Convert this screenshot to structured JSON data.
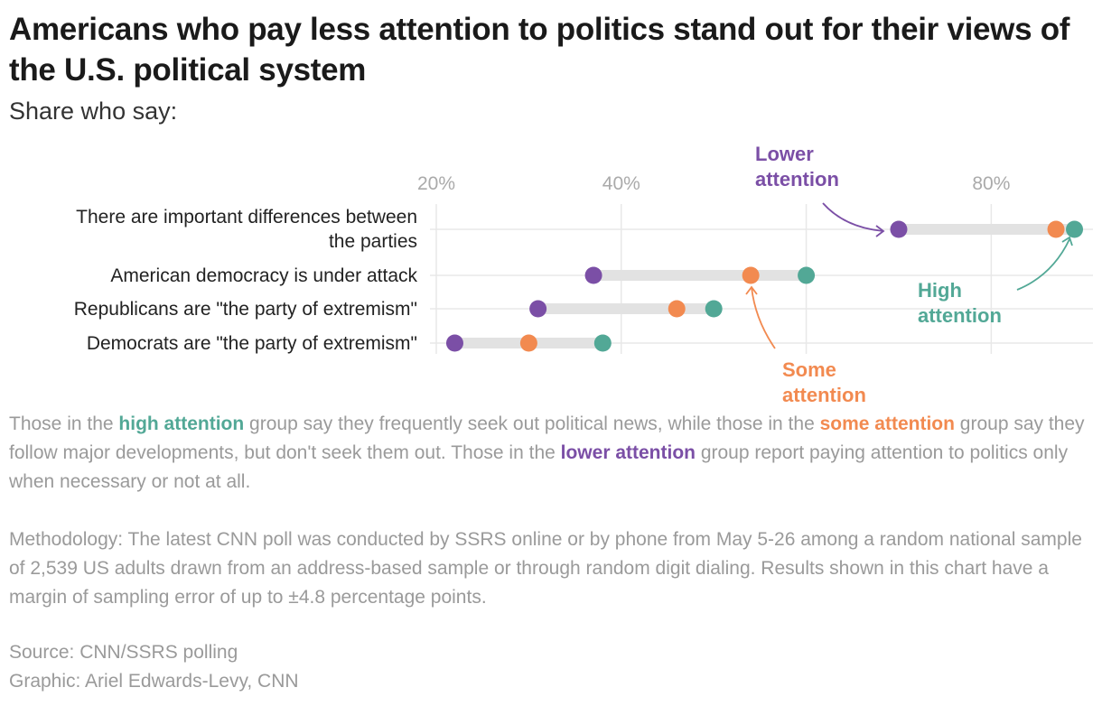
{
  "title": "Americans who pay less attention to politics stand out for their views of the U.S. political system",
  "subtitle": "Share who say:",
  "colors": {
    "lower": "#7b4fa6",
    "some": "#f28a50",
    "high": "#52a896",
    "bar": "#e2e2e2",
    "grid": "#e8e8e8"
  },
  "chart_data": {
    "type": "dot-range",
    "xlim": [
      20,
      91
    ],
    "x_ticks": [
      20,
      40,
      60,
      80
    ],
    "x_tick_labels": [
      "20%",
      "40%",
      "",
      "80%"
    ],
    "grid": true,
    "categories": [
      "There are important differences between the parties",
      "American democracy is under attack",
      "Republicans are \"the party of extremism\"",
      "Democrats are \"the party of extremism\""
    ],
    "category_lines": [
      [
        "There are important differences between",
        "the parties"
      ],
      [
        "American democracy is under attack"
      ],
      [
        "Republicans are \"the party of extremism\""
      ],
      [
        "Democrats are \"the party of extremism\""
      ]
    ],
    "series": [
      {
        "name": "Lower attention",
        "key": "lower",
        "values": [
          70,
          37,
          31,
          22
        ]
      },
      {
        "name": "Some attention",
        "key": "some",
        "values": [
          87,
          54,
          46,
          30
        ]
      },
      {
        "name": "High attention",
        "key": "high",
        "values": [
          89,
          60,
          50,
          38
        ]
      }
    ],
    "annotations": {
      "lower": [
        "Lower",
        "attention"
      ],
      "some": [
        "Some",
        "attention"
      ],
      "high": [
        "High",
        "attention"
      ]
    }
  },
  "note": {
    "p1": "Those in the ",
    "high": "high attention",
    "p2": " group say they frequently seek out political news, while those in the ",
    "some": "some attention",
    "p3": " group say they follow major developments, but don't seek them out. Those in the ",
    "lower": "lower attention",
    "p4": " group report paying attention to politics only when necessary or not at all."
  },
  "methodology": "Methodology: The latest CNN poll was conducted by SSRS online or by phone from May 5-26 among a random national sample of 2,539 US adults drawn from an address-based sample or through random digit dialing. Results shown in this chart have a margin of sampling error of up to ±4.8 percentage points.",
  "source": "Source: CNN/SSRS polling",
  "graphic": "Graphic: Ariel Edwards-Levy, CNN"
}
